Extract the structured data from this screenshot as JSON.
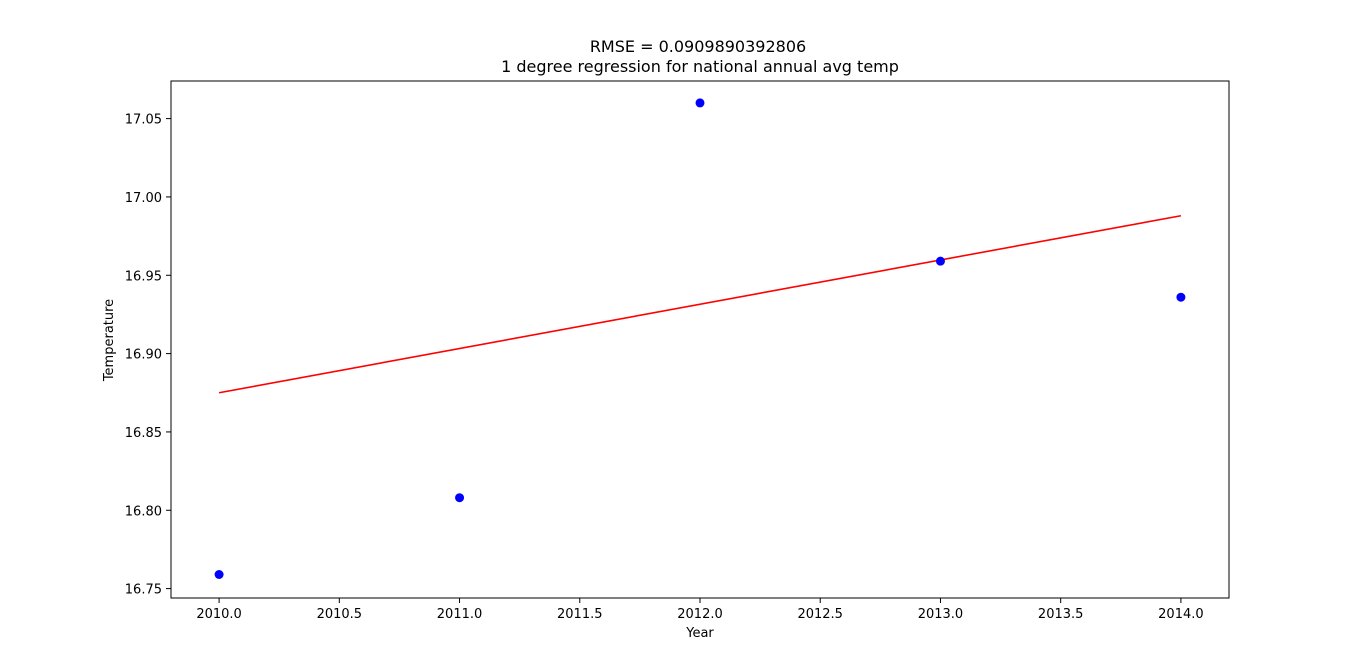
{
  "chart_data": {
    "type": "scatter",
    "title": "RMSE = 0.0909890392806",
    "subtitle": "1 degree regression for national annual avg temp",
    "xlabel": "Year",
    "ylabel": "Temperature",
    "xlim": [
      2009.8,
      2014.2
    ],
    "ylim": [
      16.744,
      17.074
    ],
    "x_ticks": [
      2010.0,
      2010.5,
      2011.0,
      2011.5,
      2012.0,
      2012.5,
      2013.0,
      2013.5,
      2014.0
    ],
    "x_tick_labels": [
      "2010.0",
      "2010.5",
      "2011.0",
      "2011.5",
      "2012.0",
      "2012.5",
      "2013.0",
      "2013.5",
      "2014.0"
    ],
    "y_ticks": [
      16.75,
      16.8,
      16.85,
      16.9,
      16.95,
      17.0,
      17.05
    ],
    "y_tick_labels": [
      "16.75",
      "16.80",
      "16.85",
      "16.90",
      "16.95",
      "17.00",
      "17.05"
    ],
    "grid": false,
    "series": [
      {
        "kind": "scatter",
        "color": "#0000ff",
        "x": [
          2010,
          2011,
          2012,
          2013,
          2014
        ],
        "y": [
          16.759,
          16.808,
          17.06,
          16.959,
          16.936
        ]
      },
      {
        "kind": "line",
        "color": "#ff0000",
        "x": [
          2010,
          2014
        ],
        "y": [
          16.875,
          16.988
        ]
      }
    ]
  }
}
